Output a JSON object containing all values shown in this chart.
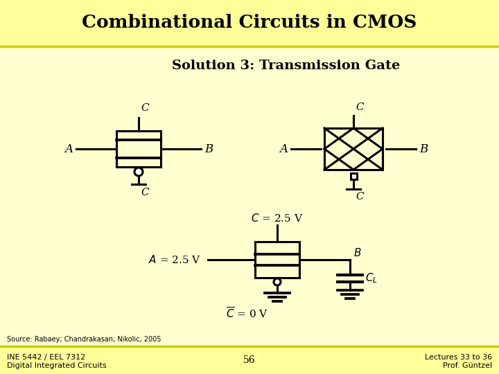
{
  "title": "Combinational Circuits in CMOS",
  "title_bg": "#FFFF99",
  "slide_bg": "#FFFFD0",
  "subtitle": "Solution 3: Transmission Gate",
  "footer_left": "INE 5442 / EEL 7312\nDigital Integrated Circuits",
  "footer_center": "56",
  "footer_right": "Lectures 33 to 36\nProf. Güntzel",
  "source": "Source: Rabaey; Chandrakasan; Nikolic, 2005",
  "separator_color": "#CCCC00",
  "footer_bar_bg": "#FFFF99"
}
